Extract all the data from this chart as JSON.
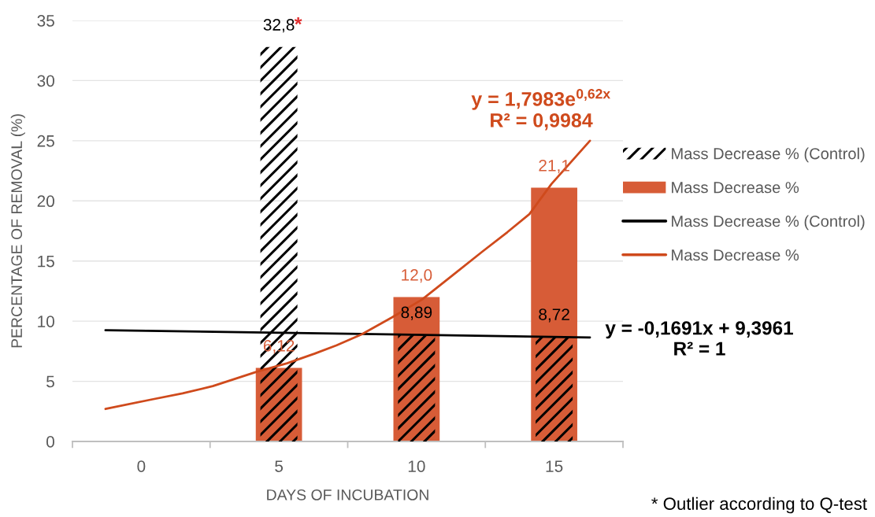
{
  "chart_data": {
    "type": "bar",
    "xlabel": "DAYS OF INCUBATION",
    "ylabel": "PERCENTAGE OF REMOVAL (%)",
    "x": [
      5,
      10,
      15
    ],
    "xlim": [
      -2.5,
      17.5
    ],
    "xticks": [
      {
        "value": -2.5,
        "label": null
      },
      0,
      {
        "value": 2.5,
        "label": null
      },
      5,
      {
        "value": 7.5,
        "label": null
      },
      10,
      {
        "value": 12.5,
        "label": null
      },
      15,
      {
        "value": 17.5,
        "label": null
      }
    ],
    "ylim": [
      0,
      35
    ],
    "yticks": [
      0,
      5,
      10,
      15,
      20,
      25,
      30,
      35
    ],
    "grid": "y",
    "legend": "right",
    "series": [
      {
        "name": "Mass Decrease % (Control)",
        "color": "#000000",
        "values": [
          32.8,
          8.89,
          8.72
        ],
        "value_labels": [
          "32,8",
          "8,89",
          "8,72"
        ]
      },
      {
        "name": "Mass Decrease %",
        "color": "#d75c37",
        "values": [
          6.12,
          12.0,
          21.1
        ],
        "value_labels": [
          "6,12",
          "12,0",
          "21,1"
        ]
      },
      {
        "name": "Mass Decrease % (Control)",
        "type": "line",
        "color": "#000000",
        "x": [
          -1.3,
          16.3
        ],
        "values": [
          9.25,
          8.65
        ]
      },
      {
        "name": "Mass Decrease %",
        "type": "line",
        "color": "#cf4a1c",
        "x": [
          -1.3,
          0.4,
          1.5,
          2.6,
          4.2,
          5.3,
          6.3,
          7.1,
          8.0,
          9.1,
          10.2,
          11.3,
          12.4,
          13.3,
          14.1,
          14.9,
          15.6,
          16.3
        ],
        "values": [
          2.7,
          3.5,
          4.0,
          4.6,
          5.8,
          6.5,
          7.3,
          8.0,
          8.9,
          10.3,
          11.8,
          13.8,
          15.8,
          17.4,
          18.9,
          21.4,
          23.2,
          25.0
        ]
      }
    ],
    "annotations": [
      {
        "text": "*",
        "x": 5,
        "y": 32.8
      },
      {
        "text": "y = 1,7983e$^{0,62x}$\nR² = 0,9984",
        "x": 16.3,
        "y": 25.0
      },
      "y = -0,1691x + 9,3961\nR² = 1",
      "* Outlier according to Q-test"
    ]
  }
}
